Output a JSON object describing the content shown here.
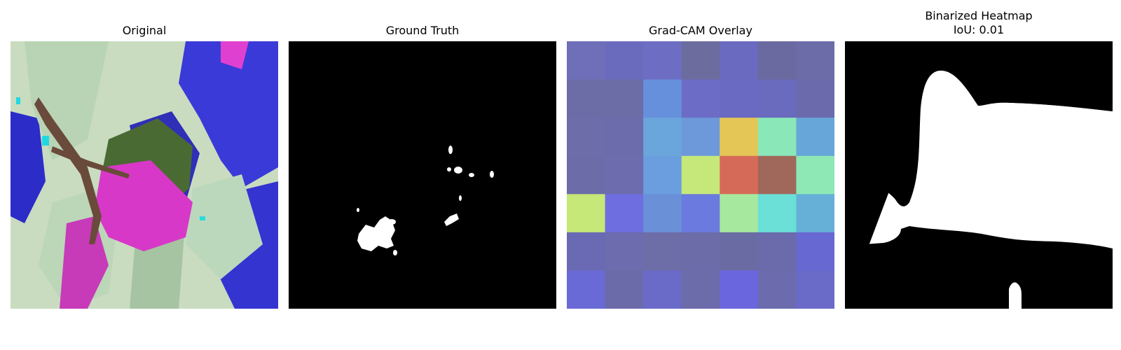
{
  "panels": [
    {
      "title": "Original"
    },
    {
      "title": "Ground Truth"
    },
    {
      "title": "Grad-CAM Overlay"
    },
    {
      "title": "Binarized Heatmap",
      "subtitle": "IoU: 0.01"
    }
  ],
  "colors": {
    "background": "#ffffff",
    "mask_foreground": "#ffffff",
    "mask_background": "#000000"
  },
  "gradcam_grid": [
    [
      "#6e6fb8",
      "#6b6bbe",
      "#6d6dc4",
      "#6c6c9e",
      "#6a6ac0",
      "#6a6aa0",
      "#6c6ca8"
    ],
    [
      "#6c6ca6",
      "#6c6ca6",
      "#6790dc",
      "#6c6cc6",
      "#6a6ac2",
      "#6a6abe",
      "#6a6aad"
    ],
    [
      "#6d6daa",
      "#6c6cac",
      "#6aa6dc",
      "#6d99da",
      "#e4c657",
      "#8ae8b8",
      "#66a6d8"
    ],
    [
      "#6c6ca8",
      "#6c6cae",
      "#6a9ede",
      "#c6e87a",
      "#d66a58",
      "#a0685a",
      "#8de8b5"
    ],
    [
      "#c6e878",
      "#6e6ee0",
      "#6a90d8",
      "#6a7ade",
      "#a6e89e",
      "#6ae0d6",
      "#66b0d8"
    ],
    [
      "#6a6ab4",
      "#6c6cae",
      "#6d6da8",
      "#6c6ca8",
      "#6b6ba4",
      "#6b6bac",
      "#6868d2"
    ],
    [
      "#6a6ad6",
      "#6b6baa",
      "#6a6ac8",
      "#6c6cab",
      "#6a66de",
      "#6b6bae",
      "#6a6ac8"
    ]
  ]
}
